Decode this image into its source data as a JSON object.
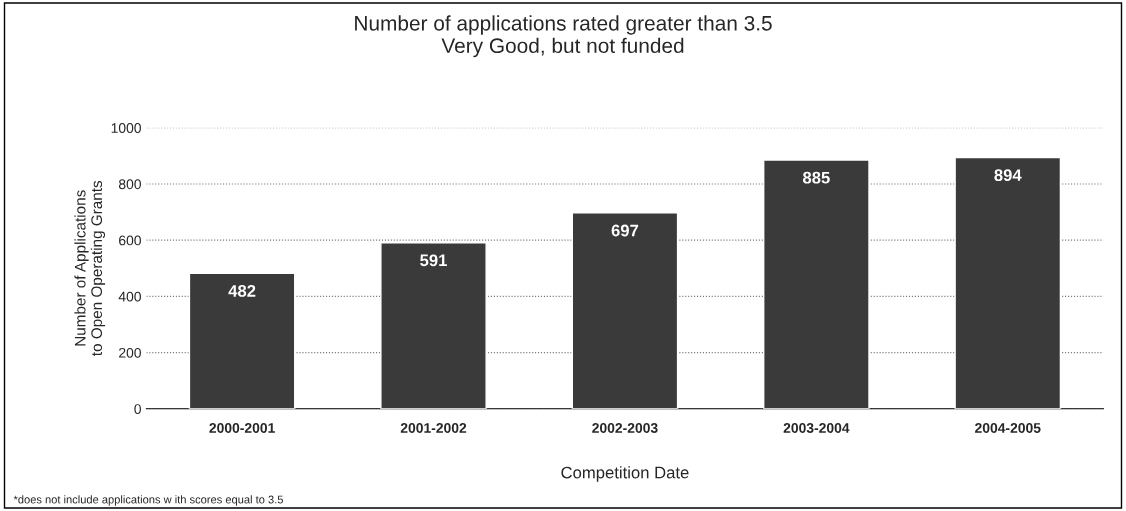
{
  "chart_data": {
    "type": "bar",
    "title": "Number of applications rated greater than 3.5\nVery Good, but not funded",
    "xlabel": "Competition Date",
    "ylabel": "Number of Applications\nto Open Operating Grants",
    "categories": [
      "2000-2001",
      "2001-2002",
      "2002-2003",
      "2003-2004",
      "2004-2005"
    ],
    "values": [
      482,
      591,
      697,
      885,
      894
    ],
    "color": "#3a3a3a",
    "ylim": [
      0,
      1000
    ],
    "yticks": [
      0,
      200,
      400,
      600,
      800,
      1000
    ],
    "grid": "y",
    "data_labels": true,
    "annotations": [
      "*does not include applications w ith scores equal to 3.5"
    ]
  }
}
